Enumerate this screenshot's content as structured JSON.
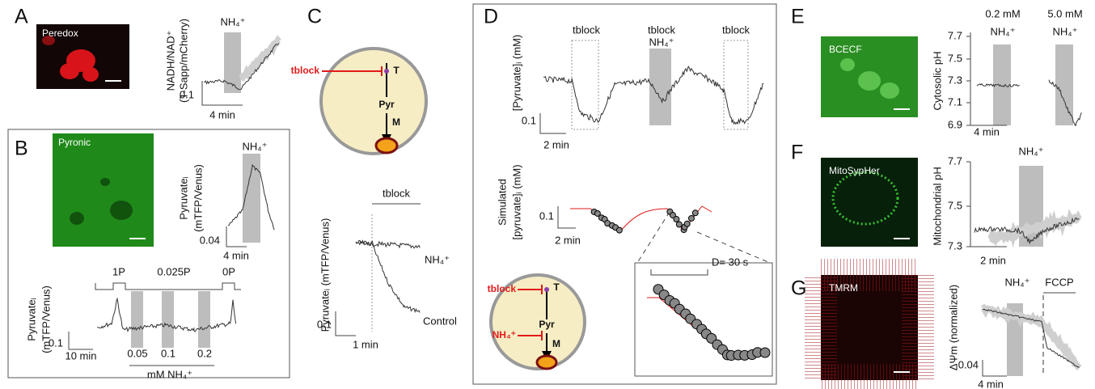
{
  "panels": {
    "A": {
      "letter": "A",
      "image_label": "Peredox",
      "treatment": "NH₄⁺",
      "y_label": [
        "NADH/NAD⁺",
        "(T-Sapp/mCherry)"
      ],
      "scale_y": "0.1",
      "scale_x": "4 min"
    },
    "B": {
      "letter": "B",
      "image_label": "Pyronic",
      "treatment": "NH₄⁺",
      "y_label": [
        "Pyruvateᵢ",
        "(mTFP/Venus)"
      ],
      "scale_y": "0.04",
      "scale_x": "4 min",
      "lower": {
        "stimuli": [
          "1P",
          "0.025P",
          "0P"
        ],
        "y_label": [
          "Pyruvateᵢ",
          "(mTFP/Venus)"
        ],
        "scale_y": "0.1",
        "scale_x": "10 min",
        "concentrations": [
          "0.05",
          "0.1",
          "0.2"
        ],
        "concentration_unit": "mM NH₄⁺"
      }
    },
    "C": {
      "letter": "C",
      "diagram": {
        "inhibitor": "tblock",
        "transporter": "T",
        "metabolite": "Pyr",
        "mitochondrion": "M"
      },
      "treatment": "tblock",
      "y_label": "Pyruvateᵢ (mTFP/Venus)",
      "traces": [
        "NH₄⁺",
        "Control"
      ],
      "scale_y": "0.1",
      "scale_x": "1 min"
    },
    "D": {
      "letter": "D",
      "treatments": [
        "tblock",
        "tblock",
        "NH₄⁺",
        "tblock"
      ],
      "y_label": "[Pyruvate]ᵢ (mM)",
      "scale_y": "0.1",
      "scale_x": "2 min",
      "simulated": {
        "y_label": [
          "Simulated",
          "[pyruvate]ᵢ (mM)"
        ],
        "scale_y": "0.1",
        "scale_x": "2 min"
      },
      "diagram": {
        "inhibitors": [
          "tblock",
          "NH₄⁺"
        ],
        "transporter": "T",
        "metabolite": "Pyr",
        "mitochondrion": "M"
      },
      "inset_label": "D= 30 s"
    },
    "E": {
      "letter": "E",
      "image_label": "BCECF",
      "treatments": [
        [
          "0.2 mM",
          "NH₄⁺"
        ],
        [
          "5.0 mM",
          "NH₄⁺"
        ]
      ],
      "y_label": "Cytosolic pH",
      "yticks": [
        "7.7",
        "7.5",
        "7.3",
        "7.1",
        "6.9"
      ],
      "scale_x": "4 min"
    },
    "F": {
      "letter": "F",
      "image_label": "MitoSypHer",
      "treatment": "NH₄⁺",
      "y_label": "Mitochondrial pH",
      "yticks": [
        "7.7",
        "7.5",
        "7.3"
      ],
      "scale_x": "2 min"
    },
    "G": {
      "letter": "G",
      "image_label": "TMRM",
      "treatments": [
        "NH₄⁺",
        "FCCP"
      ],
      "y_label": "ΔΨm (normalized)",
      "scale_y": "0.04",
      "scale_x": "4 min"
    }
  }
}
